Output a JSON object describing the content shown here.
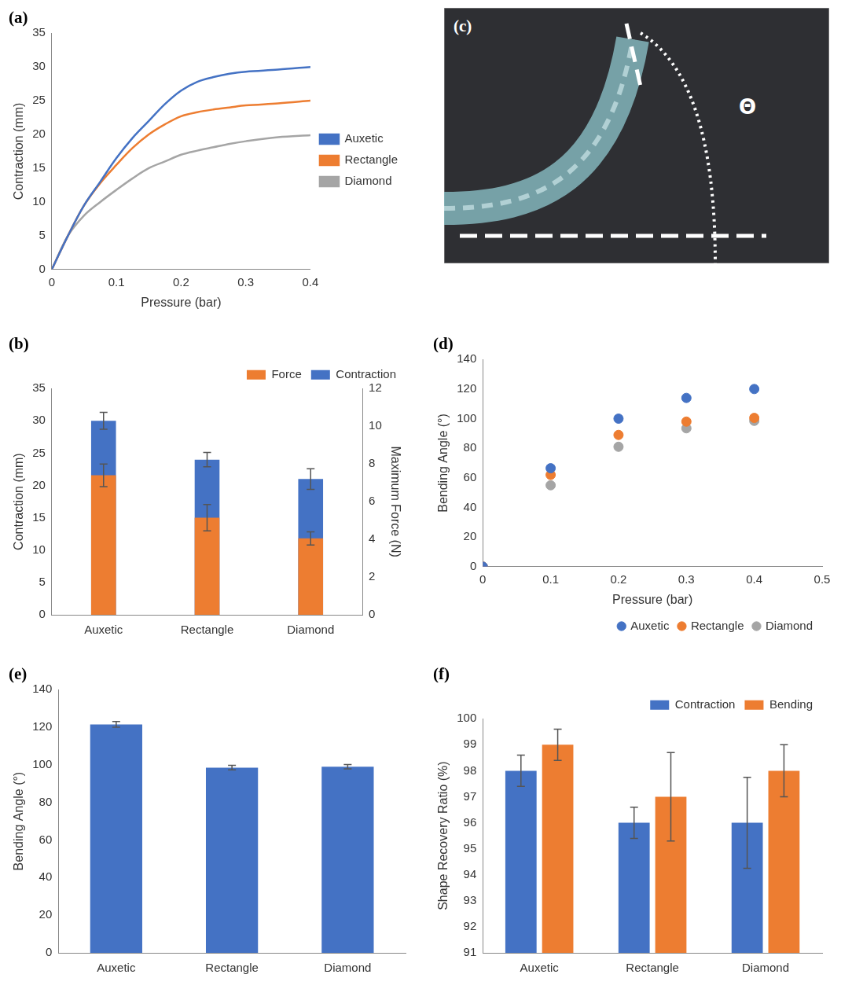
{
  "chart_data": [
    {
      "title": "(a)",
      "type": "line",
      "x_label": "Pressure (bar)",
      "y_label": "Contraction (mm)",
      "x": [
        0,
        0.025,
        0.05,
        0.075,
        0.1,
        0.125,
        0.15,
        0.175,
        0.2,
        0.225,
        0.25,
        0.275,
        0.3,
        0.35,
        0.4
      ],
      "xlim": [
        0,
        0.4
      ],
      "xticks": [
        0,
        0.1,
        0.2,
        0.3,
        0.4
      ],
      "ylim": [
        0,
        35
      ],
      "yticks": [
        0,
        5,
        10,
        15,
        20,
        25,
        30,
        35
      ],
      "grid": false,
      "legend": "right",
      "series": [
        {
          "name": "Auxetic",
          "color": "#4472c4",
          "values": [
            0,
            5,
            9.5,
            13,
            16.5,
            19.5,
            22,
            24.5,
            26.5,
            27.8,
            28.5,
            29,
            29.3,
            29.6,
            30
          ]
        },
        {
          "name": "Rectangle",
          "color": "#ed7d31",
          "values": [
            0,
            5,
            9.5,
            12.8,
            15.5,
            18,
            20,
            21.5,
            22.7,
            23.3,
            23.7,
            24,
            24.3,
            24.6,
            25
          ]
        },
        {
          "name": "Diamond",
          "color": "#a5a5a5",
          "values": [
            0,
            5,
            8,
            10,
            11.8,
            13.5,
            15,
            16,
            17,
            17.6,
            18.1,
            18.6,
            19,
            19.6,
            19.9
          ]
        }
      ]
    },
    {
      "title": "(b)",
      "type": "bar",
      "y_label": "Contraction (mm)",
      "y2_label": "Maximum Force (N)",
      "categories": [
        "Auxetic",
        "Rectangle",
        "Diamond"
      ],
      "ylim": [
        0,
        35
      ],
      "yticks": [
        0,
        5,
        10,
        15,
        20,
        25,
        30,
        35
      ],
      "y2lim": [
        0,
        12
      ],
      "y2ticks": [
        0,
        2,
        4,
        6,
        8,
        10,
        12
      ],
      "grid": false,
      "legend": "top",
      "series": [
        {
          "name": "Contraction",
          "color": "#4472c4",
          "values": [
            30,
            24,
            21
          ],
          "errors": [
            1.3,
            1.1,
            1.6
          ]
        },
        {
          "name": "Force",
          "color": "#ed7d31",
          "axis": "y2",
          "values": [
            7.4,
            5.15,
            4.05
          ],
          "errors": [
            0.6,
            0.7,
            0.35
          ]
        }
      ]
    },
    {
      "title": "(d)",
      "type": "scatter",
      "x_label": "Pressure (bar)",
      "y_label": "Bending Angle (°)",
      "x": [
        0,
        0.1,
        0.2,
        0.3,
        0.4
      ],
      "xlim": [
        0,
        0.5
      ],
      "xticks": [
        0,
        0.1,
        0.2,
        0.3,
        0.4,
        0.5
      ],
      "ylim": [
        0,
        140
      ],
      "yticks": [
        0,
        20,
        40,
        60,
        80,
        100,
        120,
        140
      ],
      "grid": false,
      "legend": "bottom",
      "marker": "circle",
      "series": [
        {
          "name": "Auxetic",
          "color": "#4472c4",
          "values": [
            0,
            66.5,
            100,
            114,
            120
          ]
        },
        {
          "name": "Rectangle",
          "color": "#ed7d31",
          "values": [
            0,
            62,
            89,
            98,
            100.5
          ]
        },
        {
          "name": "Diamond",
          "color": "#a5a5a5",
          "values": [
            0,
            55,
            81,
            93.5,
            98.5
          ]
        }
      ]
    },
    {
      "title": "(e)",
      "type": "bar",
      "y_label": "Bending Angle (°)",
      "categories": [
        "Auxetic",
        "Rectangle",
        "Diamond"
      ],
      "ylim": [
        0,
        140
      ],
      "yticks": [
        0,
        20,
        40,
        60,
        80,
        100,
        120,
        140
      ],
      "grid": false,
      "color": "#4472c4",
      "values": [
        121.5,
        98.5,
        99
      ],
      "errors": [
        1.5,
        1.2,
        1.2
      ]
    },
    {
      "title": "(f)",
      "type": "bar",
      "y_label": "Shape Recovery Ratio (%)",
      "categories": [
        "Auxetic",
        "Rectangle",
        "Diamond"
      ],
      "ylim": [
        91,
        100
      ],
      "yticks": [
        91,
        92,
        93,
        94,
        95,
        96,
        97,
        98,
        99,
        100
      ],
      "grid": false,
      "legend": "top",
      "series": [
        {
          "name": "Contraction",
          "color": "#4472c4",
          "values": [
            98,
            96,
            96
          ],
          "errors": [
            0.6,
            0.6,
            1.75
          ]
        },
        {
          "name": "Bending",
          "color": "#ed7d31",
          "values": [
            99,
            97,
            98
          ],
          "errors": [
            0.6,
            1.7,
            1.0
          ]
        }
      ]
    }
  ],
  "photo": {
    "label": "(c)",
    "annotation": "Θ"
  }
}
